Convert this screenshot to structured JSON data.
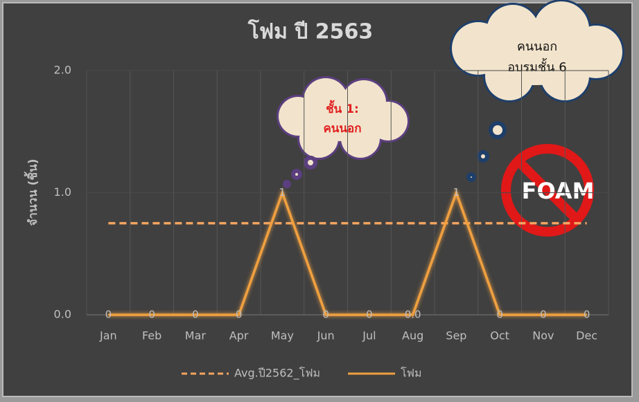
{
  "chart_data": {
    "type": "line",
    "title": "โฟม ปี 2563",
    "y_label": "จำนวน (ชิ้น)",
    "categories": [
      "Jan",
      "Feb",
      "Mar",
      "Apr",
      "May",
      "Jun",
      "Jul",
      "Aug",
      "Sep",
      "Oct",
      "Nov",
      "Dec"
    ],
    "series": [
      {
        "name": "Avg.ปี2562_โฟม",
        "color": "#f4a460",
        "dashed": true,
        "values": [
          0.75,
          0.75,
          0.75,
          0.75,
          0.75,
          0.75,
          0.75,
          0.75,
          0.75,
          0.75,
          0.75,
          0.75
        ]
      },
      {
        "name": "โฟม",
        "color": "#f0a040",
        "dashed": false,
        "values": [
          0,
          0,
          0,
          0,
          1,
          0,
          0,
          0,
          1,
          0,
          0,
          0
        ],
        "value_labels": [
          "0",
          "0",
          "0",
          "0",
          "1",
          "0",
          "0",
          "0.0",
          "1",
          "0",
          "0",
          "0"
        ]
      }
    ],
    "ylim": [
      0,
      2
    ],
    "yticks": [
      {
        "value": 0,
        "label": "0.0"
      },
      {
        "value": 1,
        "label": "1.0"
      },
      {
        "value": 2,
        "label": "2.0"
      }
    ],
    "grid": true,
    "legend": "bottom",
    "annotations": [
      {
        "lines": [
          "ชั้น 1:",
          "คนนอก"
        ]
      },
      {
        "lines": [
          "คนนอก",
          "อบรมชั้น 6"
        ]
      }
    ],
    "icon_text": "FOAM"
  }
}
